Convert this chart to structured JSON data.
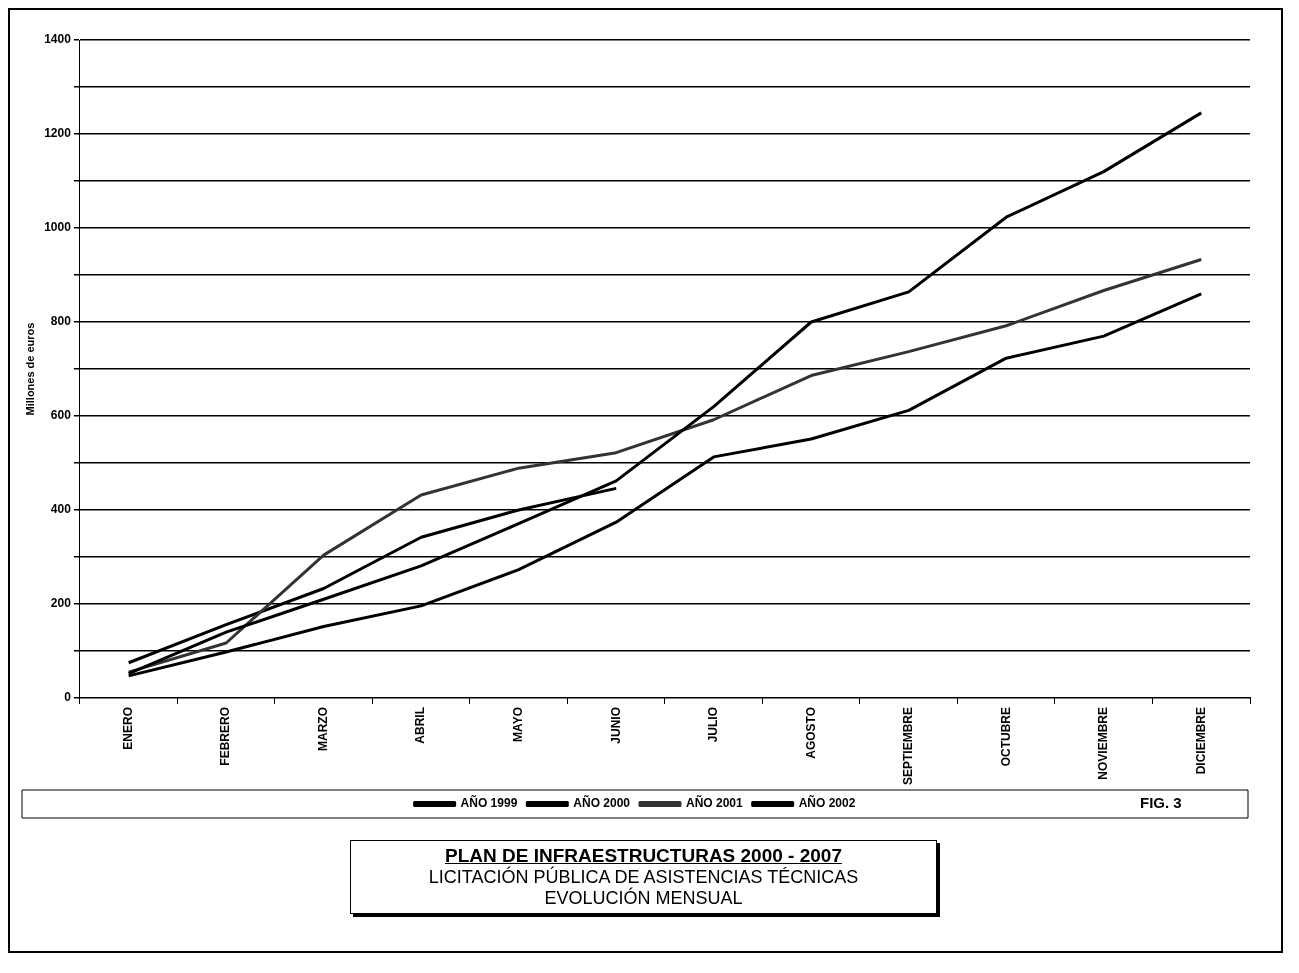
{
  "chart_data": {
    "type": "line",
    "title": "PLAN DE INFRAESTRUCTURAS 2000 - 2007",
    "subtitle": "LICITACIÓN PÚBLICA DE  ASISTENCIAS TÉCNICAS\nEVOLUCIÓN MENSUAL",
    "ylabel": "Millones de euros",
    "categories": [
      "ENERO",
      "FEBRERO",
      "MARZO",
      "ABRIL",
      "MAYO",
      "JUNIO",
      "JULIO",
      "AGOSTO",
      "SEPTIEMBRE",
      "OCTUBRE",
      "NOVIEMBRE",
      "DICIEMBRE"
    ],
    "series": [
      {
        "name": "AÑO 1999",
        "color": "#000000",
        "values": [
          47,
          98,
          152,
          196,
          273,
          374,
          513,
          551,
          612,
          723,
          770,
          860
        ]
      },
      {
        "name": "AÑO 2000",
        "color": "#000000",
        "values": [
          52,
          140,
          210,
          281,
          371,
          462,
          620,
          800,
          864,
          1023,
          1120,
          1245
        ]
      },
      {
        "name": "AÑO 2001",
        "color": "#333333",
        "values": [
          55,
          117,
          304,
          432,
          489,
          522,
          592,
          686,
          737,
          792,
          867,
          933
        ]
      },
      {
        "name": "AÑO 2002",
        "color": "#000000",
        "values": [
          75,
          156,
          233,
          342,
          400,
          446,
          null,
          null,
          null,
          null,
          null,
          null
        ]
      }
    ],
    "ylim": [
      0,
      1400
    ],
    "yticks": [
      0,
      {
        "value": 100,
        "label": null
      },
      200,
      {
        "value": 300,
        "label": null
      },
      400,
      {
        "value": 500,
        "label": null
      },
      600,
      {
        "value": 700,
        "label": null
      },
      800,
      {
        "value": 900,
        "label": null
      },
      1000,
      {
        "value": 1100,
        "label": null
      },
      1200,
      {
        "value": 1300,
        "label": null
      },
      1400
    ],
    "grid": "y",
    "legend": "bottom",
    "marker": "none",
    "line_style": "solid",
    "annotations": [
      "FIG. 3"
    ]
  }
}
